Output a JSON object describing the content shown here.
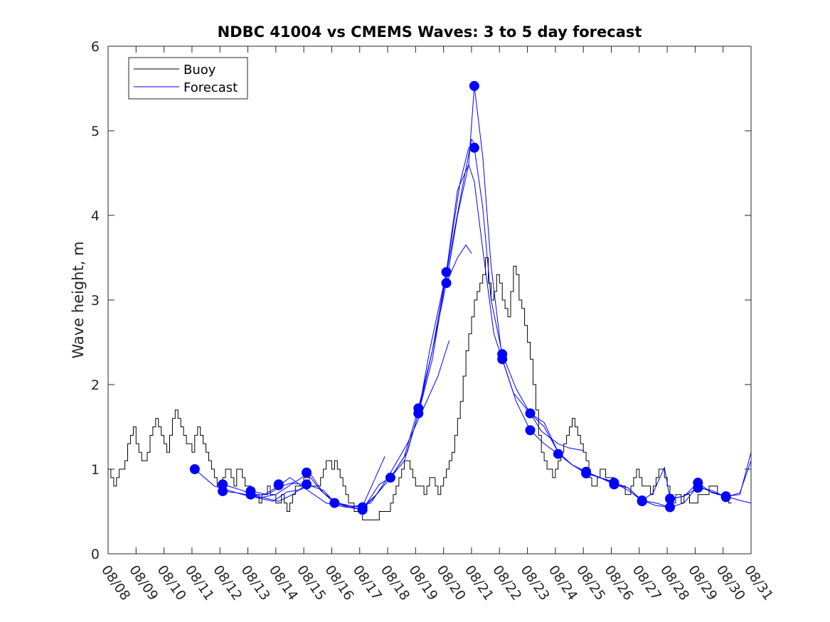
{
  "chart_data": {
    "type": "line",
    "title": "NDBC 41004 vs CMEMS Waves: 3 to 5 day forecast",
    "xlabel": "",
    "ylabel": "Wave height, m",
    "xlim": [
      0,
      23
    ],
    "ylim": [
      0,
      6
    ],
    "x_ticks": [
      0,
      1,
      2,
      3,
      4,
      5,
      6,
      7,
      8,
      9,
      10,
      11,
      12,
      13,
      14,
      15,
      16,
      17,
      18,
      19,
      20,
      21,
      22,
      23
    ],
    "x_tick_labels": [
      "08/08",
      "08/09",
      "08/10",
      "08/11",
      "08/12",
      "08/13",
      "08/14",
      "08/15",
      "08/16",
      "08/17",
      "08/18",
      "08/19",
      "08/20",
      "08/21",
      "08/22",
      "08/23",
      "08/24",
      "08/25",
      "08/26",
      "08/27",
      "08/28",
      "08/29",
      "08/30",
      "08/31"
    ],
    "y_ticks": [
      0,
      1,
      2,
      3,
      4,
      5,
      6
    ],
    "y_tick_labels": [
      "0",
      "1",
      "2",
      "3",
      "4",
      "5",
      "6"
    ],
    "grid": false,
    "legend_position": "top-left",
    "legend": [
      {
        "name": "Buoy",
        "color": "#000000"
      },
      {
        "name": "Forecast",
        "color": "#0000ff"
      }
    ],
    "series": [
      {
        "name": "Buoy",
        "color": "#000000",
        "step": 0.1,
        "start": 0,
        "values": [
          1.0,
          0.9,
          0.8,
          0.9,
          1.0,
          1.0,
          1.1,
          1.3,
          1.4,
          1.5,
          1.3,
          1.2,
          1.1,
          1.1,
          1.2,
          1.4,
          1.5,
          1.6,
          1.5,
          1.4,
          1.3,
          1.2,
          1.4,
          1.6,
          1.7,
          1.6,
          1.5,
          1.4,
          1.3,
          1.3,
          1.2,
          1.4,
          1.5,
          1.4,
          1.3,
          1.2,
          1.1,
          1.0,
          0.9,
          0.8,
          0.8,
          0.9,
          1.0,
          1.0,
          0.9,
          0.8,
          1.0,
          1.0,
          0.9,
          0.8,
          0.8,
          0.7,
          0.7,
          0.7,
          0.6,
          0.7,
          0.7,
          0.8,
          0.7,
          0.7,
          0.6,
          0.6,
          0.7,
          0.6,
          0.5,
          0.6,
          0.7,
          0.8,
          0.8,
          0.8,
          0.9,
          0.9,
          0.8,
          0.8,
          0.8,
          0.8,
          0.9,
          1.0,
          1.1,
          1.1,
          1.0,
          1.1,
          1.0,
          0.9,
          0.8,
          0.7,
          0.6,
          0.6,
          0.5,
          0.5,
          0.5,
          0.4,
          0.4,
          0.4,
          0.4,
          0.4,
          0.4,
          0.5,
          0.5,
          0.5,
          0.5,
          0.6,
          0.7,
          0.8,
          0.9,
          1.0,
          1.1,
          1.1,
          1.0,
          0.9,
          0.8,
          0.8,
          0.8,
          0.7,
          0.8,
          0.9,
          0.9,
          0.8,
          0.7,
          0.8,
          0.9,
          1.0,
          1.1,
          1.2,
          1.4,
          1.6,
          1.8,
          2.1,
          2.4,
          2.6,
          2.8,
          3.0,
          3.1,
          3.2,
          3.3,
          3.5,
          3.2,
          3.0,
          3.1,
          3.3,
          3.2,
          3.0,
          2.9,
          2.8,
          3.1,
          3.4,
          3.3,
          3.0,
          2.9,
          2.7,
          2.5,
          2.3,
          2.0,
          1.7,
          1.4,
          1.2,
          1.1,
          1.0,
          1.0,
          0.9,
          1.0,
          1.1,
          1.2,
          1.3,
          1.4,
          1.5,
          1.6,
          1.5,
          1.4,
          1.3,
          1.2,
          1.1,
          0.9,
          0.8,
          0.8,
          0.9,
          1.0,
          1.0,
          0.9,
          0.9,
          0.9,
          0.8,
          0.8,
          0.8,
          0.8,
          0.7,
          0.7,
          0.8,
          0.9,
          1.0,
          0.9,
          0.8,
          0.8,
          0.8,
          0.7,
          0.8,
          0.9,
          1.0,
          1.0,
          0.9,
          0.8,
          0.7,
          0.6,
          0.7,
          0.7,
          0.6,
          0.7,
          0.7,
          0.6,
          0.6,
          0.6,
          0.7,
          0.7,
          0.7,
          0.7,
          0.8,
          0.8,
          0.8,
          0.7,
          0.7,
          0.7,
          0.7,
          0.6
        ]
      },
      {
        "name": "Forecast run 1",
        "color": "#0000ff",
        "x": [
          3.1,
          3.8,
          4.8,
          5.9,
          6.4,
          6.9,
          7.1
        ],
        "values": [
          1.0,
          0.8,
          0.7,
          0.62,
          0.73,
          0.76,
          0.8
        ]
      },
      {
        "name": "Forecast run 2",
        "color": "#0000ff",
        "x": [
          4.1,
          4.8,
          5.4,
          6.0,
          6.6,
          7.1
        ],
        "values": [
          0.82,
          0.75,
          0.66,
          0.7,
          0.83,
          0.82
        ]
      },
      {
        "name": "Forecast run 3",
        "color": "#0000ff",
        "x": [
          4.1,
          4.6,
          5.1,
          5.6,
          6.1,
          6.5,
          7.1,
          7.8,
          8.5,
          9.1,
          9.9
        ],
        "values": [
          0.74,
          0.72,
          0.69,
          0.7,
          0.8,
          0.9,
          0.76,
          0.6,
          0.55,
          0.56,
          1.15
        ]
      },
      {
        "name": "Forecast run 4",
        "color": "#0000ff",
        "x": [
          5.1,
          5.7,
          6.2,
          6.7,
          7.2,
          7.7,
          8.2,
          8.8,
          9.4,
          10.0,
          10.7,
          11.2,
          11.8,
          12.2
        ],
        "values": [
          0.74,
          0.7,
          0.8,
          0.85,
          0.96,
          0.72,
          0.6,
          0.56,
          0.6,
          0.9,
          1.3,
          1.66,
          2.1,
          2.52
        ]
      },
      {
        "name": "Forecast run 5",
        "color": "#0000ff",
        "x": [
          5.1,
          5.6,
          6.1,
          6.6,
          7.1,
          7.7,
          8.1,
          8.7,
          9.1,
          9.7,
          10.1,
          10.7,
          11.1,
          11.6,
          12.1,
          12.6,
          13.0,
          13.2
        ],
        "values": [
          0.7,
          0.66,
          0.62,
          0.7,
          0.82,
          0.75,
          0.61,
          0.55,
          0.52,
          0.82,
          0.9,
          1.2,
          1.66,
          2.3,
          3.3,
          4.2,
          4.9,
          4.8
        ]
      },
      {
        "name": "Forecast run 6",
        "color": "#0000ff",
        "x": [
          7.1,
          7.6,
          8.1,
          8.6,
          9.1,
          9.6,
          10.1,
          10.6,
          11.1,
          11.5,
          12.1,
          12.5,
          12.9,
          13.1,
          13.4,
          13.8,
          14.1,
          14.5,
          15.1,
          15.5,
          16.1,
          16.5,
          17.0
        ],
        "values": [
          0.96,
          0.75,
          0.6,
          0.55,
          0.52,
          0.7,
          0.9,
          1.1,
          1.66,
          2.4,
          3.33,
          4.3,
          4.6,
          4.4,
          3.6,
          2.6,
          2.3,
          1.9,
          1.66,
          1.45,
          1.3,
          1.25,
          1.22
        ]
      },
      {
        "name": "Forecast run 7",
        "color": "#0000ff",
        "x": [
          9.1,
          9.6,
          10.1,
          10.6,
          11.1,
          11.6,
          12.1,
          12.6,
          12.9,
          13.1,
          13.4,
          13.7,
          14.1,
          14.6,
          15.1,
          15.6,
          16.1,
          16.6,
          17.1,
          17.6,
          18.1
        ],
        "values": [
          0.55,
          0.7,
          0.9,
          1.15,
          1.72,
          2.4,
          3.33,
          4.4,
          4.8,
          4.8,
          4.1,
          3.0,
          2.36,
          1.95,
          1.66,
          1.55,
          1.2,
          1.05,
          0.97,
          0.9,
          0.85
        ]
      },
      {
        "name": "Forecast run 8",
        "color": "#0000ff",
        "x": [
          11.1,
          11.6,
          12.1,
          12.5,
          12.9,
          13.1,
          13.4,
          13.7,
          14.1,
          14.6,
          15.1,
          15.6,
          16.1,
          16.6,
          17.1,
          17.6,
          18.1,
          18.6,
          19.1,
          19.6,
          20.1
        ],
        "values": [
          1.66,
          2.4,
          3.2,
          4.0,
          4.6,
          5.53,
          4.7,
          3.4,
          2.3,
          1.8,
          1.46,
          1.3,
          1.18,
          1.05,
          0.95,
          0.9,
          0.84,
          0.75,
          0.63,
          0.6,
          0.55
        ]
      },
      {
        "name": "Forecast run 9",
        "color": "#0000ff",
        "x": [
          12.1,
          12.5,
          12.8,
          13.0
        ],
        "values": [
          3.2,
          3.5,
          3.65,
          3.55
        ]
      },
      {
        "name": "Forecast run 10",
        "color": "#0000ff",
        "x": [
          15.1,
          15.6,
          16.1,
          16.6,
          17.1,
          17.6,
          18.1,
          18.6,
          19.1,
          19.5,
          19.9,
          20.1,
          20.6,
          21.1,
          21.6,
          22.1,
          22.6,
          23.0
        ],
        "values": [
          1.66,
          1.5,
          1.2,
          1.05,
          0.96,
          0.9,
          0.82,
          0.78,
          0.63,
          0.72,
          1.02,
          0.65,
          0.68,
          0.84,
          0.72,
          0.68,
          0.63,
          0.6
        ]
      },
      {
        "name": "Forecast run 11",
        "color": "#0000ff",
        "x": [
          17.1,
          17.6,
          18.1,
          18.6,
          19.1,
          19.6,
          20.1,
          20.6,
          21.1,
          21.6,
          22.1,
          22.6,
          23.0
        ],
        "values": [
          0.96,
          0.9,
          0.84,
          0.78,
          0.63,
          0.57,
          0.55,
          0.6,
          0.8,
          0.73,
          0.68,
          0.7,
          1.2
        ]
      },
      {
        "name": "Forecast run 12",
        "color": "#0000ff",
        "x": [
          20.1,
          20.6,
          21.1,
          21.6,
          22.1,
          22.6,
          23.0
        ],
        "values": [
          0.65,
          0.68,
          0.78,
          0.75,
          0.67,
          0.72,
          1.1
        ]
      }
    ],
    "markers": [
      {
        "x": 3.1,
        "y": 1.0
      },
      {
        "x": 4.1,
        "y": 0.82
      },
      {
        "x": 4.1,
        "y": 0.74
      },
      {
        "x": 5.1,
        "y": 0.74
      },
      {
        "x": 5.1,
        "y": 0.7
      },
      {
        "x": 6.1,
        "y": 0.81
      },
      {
        "x": 6.1,
        "y": 0.82
      },
      {
        "x": 7.1,
        "y": 0.96
      },
      {
        "x": 7.1,
        "y": 0.82
      },
      {
        "x": 8.1,
        "y": 0.6
      },
      {
        "x": 9.1,
        "y": 0.55
      },
      {
        "x": 9.1,
        "y": 0.52
      },
      {
        "x": 10.1,
        "y": 0.9
      },
      {
        "x": 11.1,
        "y": 1.72
      },
      {
        "x": 11.1,
        "y": 1.66
      },
      {
        "x": 12.1,
        "y": 3.33
      },
      {
        "x": 12.1,
        "y": 3.2
      },
      {
        "x": 13.1,
        "y": 5.53
      },
      {
        "x": 13.1,
        "y": 4.8
      },
      {
        "x": 14.1,
        "y": 2.36
      },
      {
        "x": 14.1,
        "y": 2.3
      },
      {
        "x": 15.1,
        "y": 1.66
      },
      {
        "x": 15.1,
        "y": 1.46
      },
      {
        "x": 16.1,
        "y": 1.18
      },
      {
        "x": 17.1,
        "y": 0.97
      },
      {
        "x": 17.1,
        "y": 0.95
      },
      {
        "x": 18.1,
        "y": 0.84
      },
      {
        "x": 18.1,
        "y": 0.82
      },
      {
        "x": 19.1,
        "y": 0.63
      },
      {
        "x": 19.1,
        "y": 0.62
      },
      {
        "x": 20.1,
        "y": 0.65
      },
      {
        "x": 20.1,
        "y": 0.55
      },
      {
        "x": 21.1,
        "y": 0.84
      },
      {
        "x": 21.1,
        "y": 0.78
      },
      {
        "x": 22.1,
        "y": 0.68
      },
      {
        "x": 22.1,
        "y": 0.67
      }
    ]
  }
}
